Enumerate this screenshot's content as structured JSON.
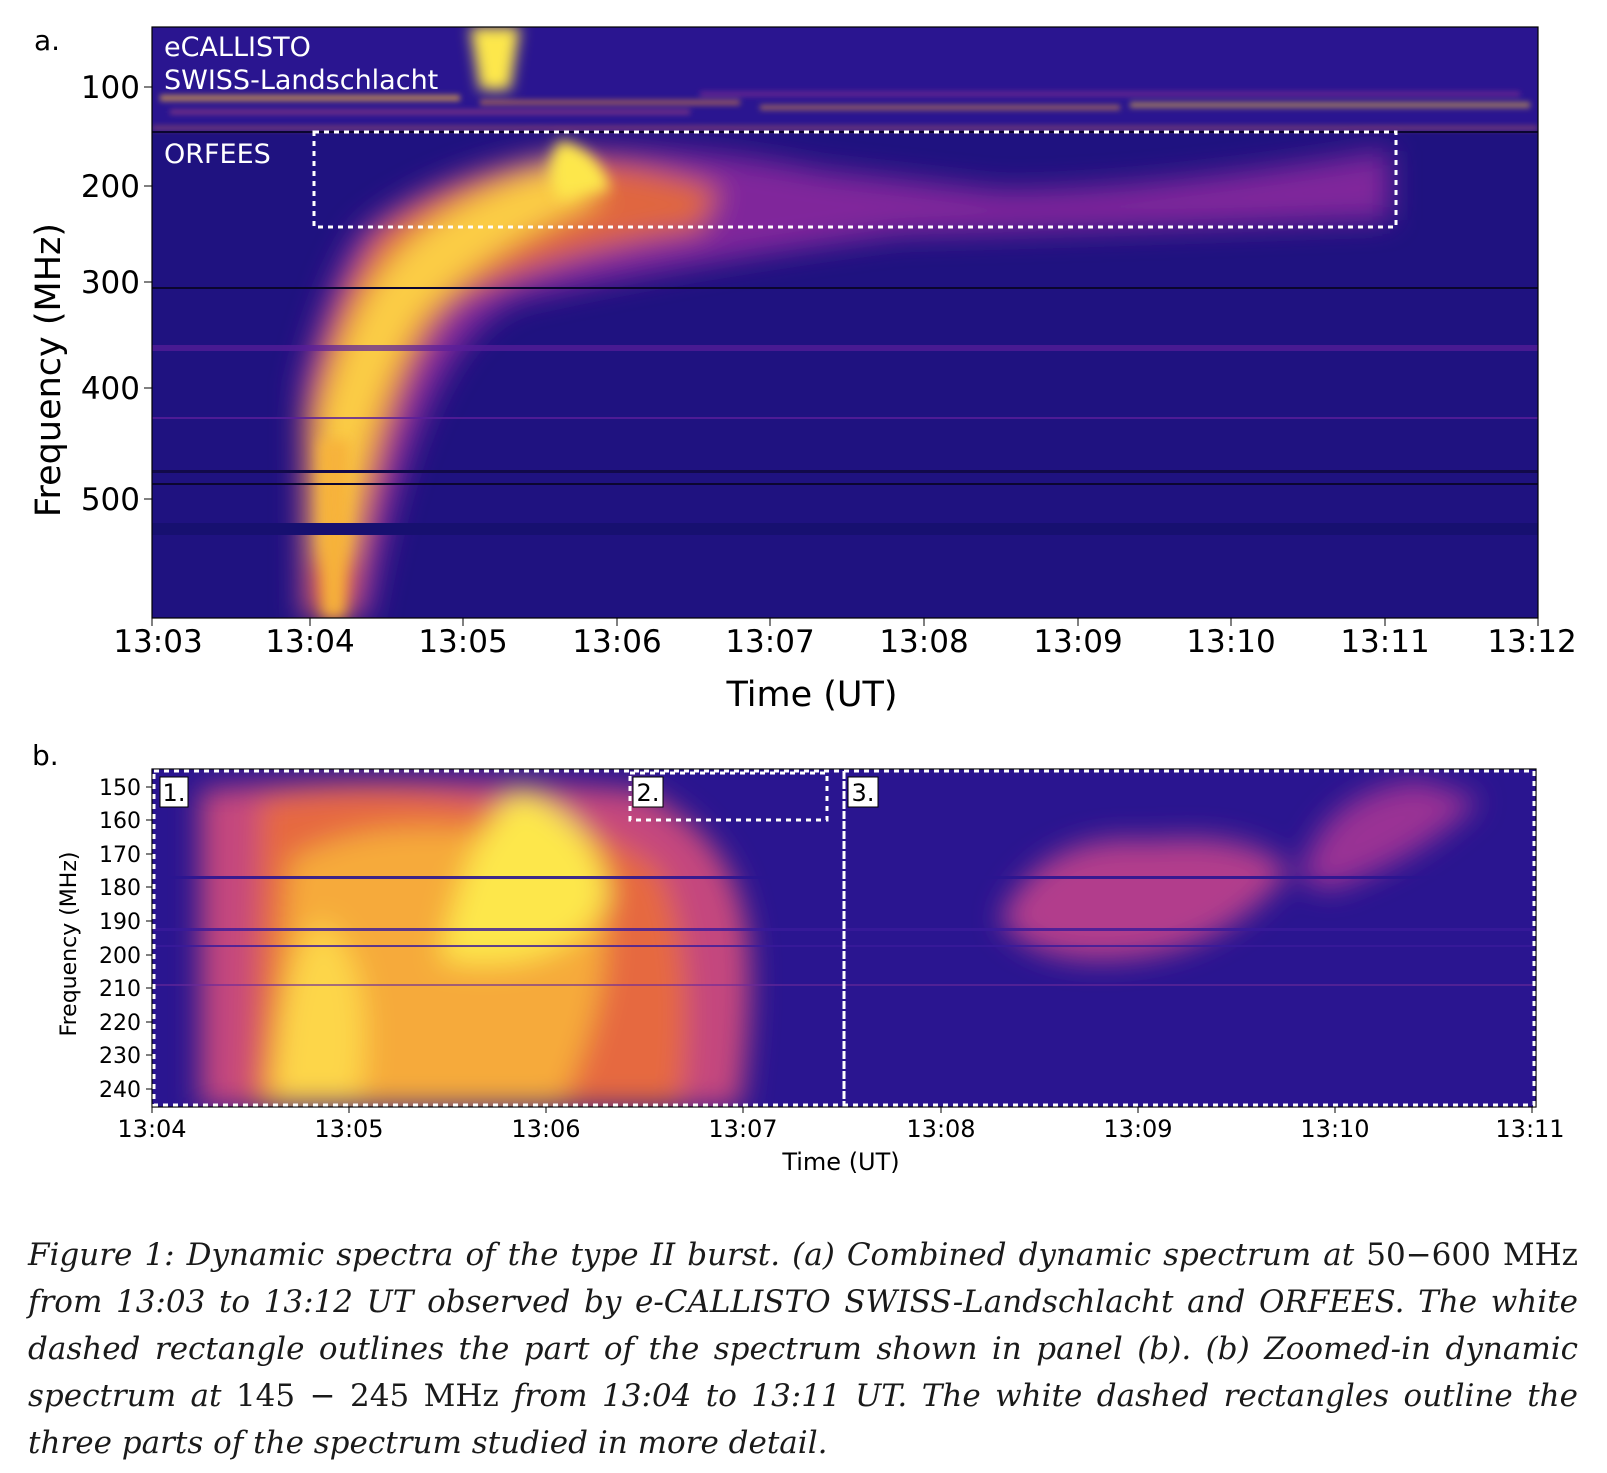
{
  "panel_a": {
    "label": "a.",
    "ylabel": "Frequency (MHz)",
    "xlabel": "Time (UT)",
    "annotations": [
      "eCALLISTO",
      "SWISS-Landschlacht",
      "ORFEES"
    ],
    "x_ticks": [
      "13:03",
      "13:04",
      "13:05",
      "13:06",
      "13:07",
      "13:08",
      "13:09",
      "13:10",
      "13:11",
      "13:12"
    ],
    "y_ticks": [
      "100",
      "200",
      "300",
      "400",
      "500"
    ]
  },
  "panel_b": {
    "label": "b.",
    "ylabel": "Frequency (MHz)",
    "xlabel": "Time (UT)",
    "box_labels": [
      "1.",
      "2.",
      "3."
    ],
    "x_ticks": [
      "13:04",
      "13:05",
      "13:06",
      "13:07",
      "13:08",
      "13:09",
      "13:10",
      "13:11"
    ],
    "y_ticks": [
      "150",
      "160",
      "170",
      "180",
      "190",
      "200",
      "210",
      "220",
      "230",
      "240"
    ]
  },
  "caption": {
    "part1": "Figure 1: Dynamic spectra of the type II burst. (a) Combined dynamic spectrum at ",
    "range_a": "50−600 MHz",
    "part2": " from 13:03 to 13:12 UT observed by e-CALLISTO SWISS-Landschlacht and ORFEES. The white dashed rectangle outlines the part of the spectrum shown in panel (b). (b) Zoomed-in dynamic spectrum at ",
    "range_b": "145 − 245 MHz",
    "part3": " from 13:04 to 13:11 UT. The white dashed rectangles outline the three parts of the spectrum studied in more detail."
  },
  "colors": {
    "background_low": "#1f1280",
    "mid": "#8c2a9e",
    "high": "#e96b3a",
    "peak": "#fde74c",
    "box_outline": "#ffffff"
  },
  "chart_data": [
    {
      "type": "heatmap",
      "title": "",
      "xlabel": "Time (UT)",
      "ylabel": "Frequency (MHz)",
      "x_range": [
        "13:03",
        "13:12"
      ],
      "ylim": [
        45,
        600
      ],
      "y_inverted": true,
      "x_ticks": [
        "13:03",
        "13:04",
        "13:05",
        "13:06",
        "13:07",
        "13:08",
        "13:09",
        "13:10",
        "13:11",
        "13:12"
      ],
      "y_ticks": [
        100,
        200,
        300,
        400,
        500
      ],
      "annotations": [
        "eCALLISTO",
        "SWISS-Landschlacht",
        "ORFEES"
      ],
      "colormap": "plasma",
      "boxes": [
        {
          "t_start": "13:04",
          "t_end": "13:11",
          "f_low": 145,
          "f_high": 245
        }
      ]
    },
    {
      "type": "heatmap",
      "title": "",
      "xlabel": "Time (UT)",
      "ylabel": "Frequency (MHz)",
      "x_range": [
        "13:04",
        "13:11"
      ],
      "ylim": [
        145,
        245
      ],
      "y_inverted": true,
      "x_ticks": [
        "13:04",
        "13:05",
        "13:06",
        "13:07",
        "13:08",
        "13:09",
        "13:10",
        "13:11"
      ],
      "y_ticks": [
        150,
        160,
        170,
        180,
        190,
        200,
        210,
        220,
        230,
        240
      ],
      "colormap": "plasma",
      "boxes": [
        {
          "label": "1.",
          "t_start": "13:04",
          "t_end": "13:07.5",
          "f_low": 145,
          "f_high": 245
        },
        {
          "label": "2.",
          "t_start": "13:06.4",
          "t_end": "13:07.4",
          "f_low": 145,
          "f_high": 160
        },
        {
          "label": "3.",
          "t_start": "13:07.5",
          "t_end": "13:11",
          "f_low": 145,
          "f_high": 245
        }
      ]
    }
  ]
}
